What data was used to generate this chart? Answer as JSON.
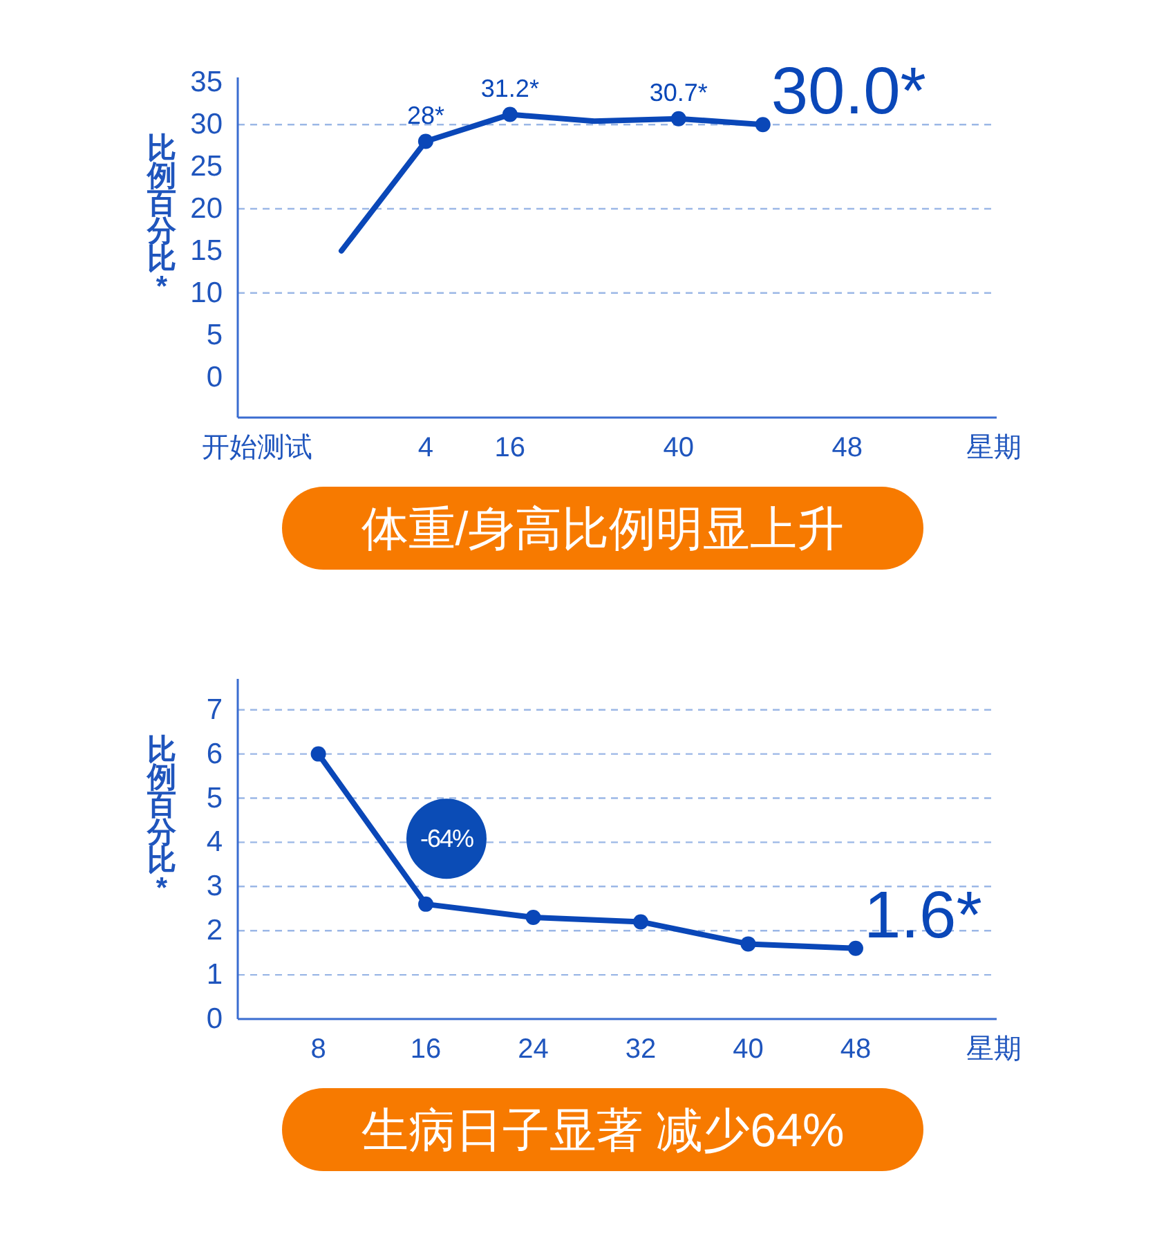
{
  "chart_data": [
    {
      "type": "line",
      "title": "体重/身高比例明显上升",
      "xlabel": "星期",
      "ylabel": "比例百分比*",
      "categories": [
        "开始测试",
        null,
        "4",
        "16",
        null,
        "40",
        null,
        "48"
      ],
      "ylim": [
        -4.8,
        35.6
      ],
      "yticks": [
        0,
        5,
        10,
        15,
        20,
        25,
        30,
        35
      ],
      "ref_lines": [
        {
          "axis": "y",
          "value": 30,
          "color": "#9bb7e6",
          "line_style": "dashed"
        },
        {
          "axis": "y",
          "value": 20,
          "color": "#9bb7e6",
          "line_style": "dashed"
        },
        {
          "axis": "y",
          "value": 10,
          "color": "#9bb7e6",
          "line_style": "dashed"
        }
      ],
      "series": [
        {
          "color": "#0a47b8",
          "values": [
            null,
            15,
            28,
            31.2,
            30.4,
            30.7,
            30.0,
            null
          ]
        },
        {
          "type": "scatter",
          "color": "#0a47b8",
          "marker": "circle",
          "values": [
            null,
            null,
            28,
            31.2,
            null,
            30.7,
            30.0,
            null
          ],
          "value_labels": [
            null,
            null,
            "28*",
            "31.2*",
            null,
            "30.7*",
            "30.0*",
            null
          ]
        }
      ]
    },
    {
      "type": "line",
      "title": "生病日子显著 减少64%",
      "xlabel": "星期",
      "ylabel": "比例百分比*",
      "x": [
        8,
        16,
        24,
        32,
        40,
        48
      ],
      "values": [
        6,
        2.6,
        2.3,
        2.2,
        1.7,
        1.6
      ],
      "color": "#0a47b8",
      "marker": "circle",
      "value_labels": [
        null,
        null,
        null,
        null,
        null,
        "1.6*"
      ],
      "xlim": [
        2,
        58.5
      ],
      "xticks": [
        8,
        16,
        24,
        32,
        40,
        48
      ],
      "ylim": [
        0,
        7.7
      ],
      "yticks": [
        0,
        1,
        2,
        3,
        4,
        5,
        6,
        7
      ],
      "grid": "y",
      "annotations": [
        "-64%"
      ]
    }
  ]
}
